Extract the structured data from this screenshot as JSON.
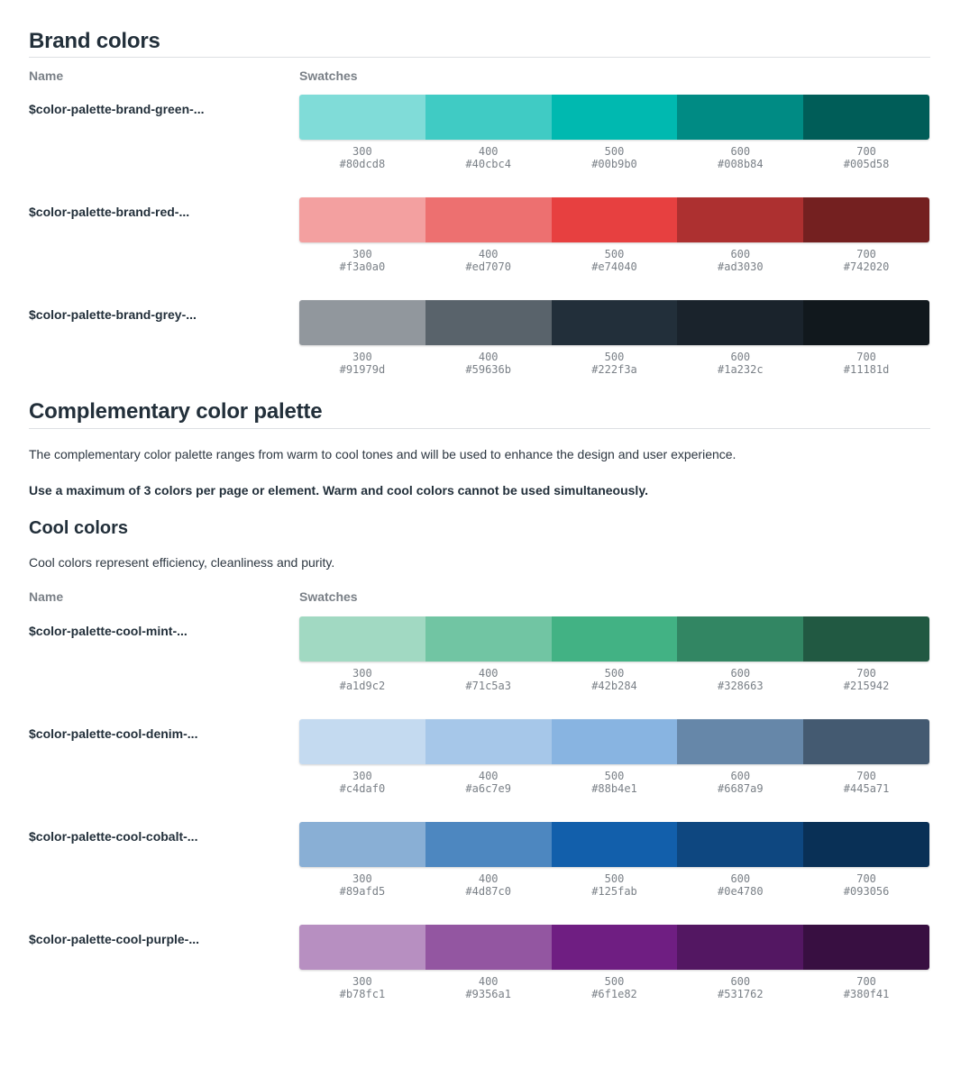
{
  "brand": {
    "title": "Brand colors",
    "col_name": "Name",
    "col_swatches": "Swatches",
    "rows": [
      {
        "token": "$color-palette-brand-green-...",
        "swatches": [
          {
            "step": "300",
            "hex": "#80dcd8"
          },
          {
            "step": "400",
            "hex": "#40cbc4"
          },
          {
            "step": "500",
            "hex": "#00b9b0"
          },
          {
            "step": "600",
            "hex": "#008b84"
          },
          {
            "step": "700",
            "hex": "#005d58"
          }
        ]
      },
      {
        "token": "$color-palette-brand-red-...",
        "swatches": [
          {
            "step": "300",
            "hex": "#f3a0a0"
          },
          {
            "step": "400",
            "hex": "#ed7070"
          },
          {
            "step": "500",
            "hex": "#e74040"
          },
          {
            "step": "600",
            "hex": "#ad3030"
          },
          {
            "step": "700",
            "hex": "#742020"
          }
        ]
      },
      {
        "token": "$color-palette-brand-grey-...",
        "swatches": [
          {
            "step": "300",
            "hex": "#91979d"
          },
          {
            "step": "400",
            "hex": "#59636b"
          },
          {
            "step": "500",
            "hex": "#222f3a"
          },
          {
            "step": "600",
            "hex": "#1a232c"
          },
          {
            "step": "700",
            "hex": "#11181d"
          }
        ]
      }
    ]
  },
  "complementary": {
    "title": "Complementary color palette",
    "intro": "The complementary color palette ranges from warm to cool tones and will be used to enhance the design and user experience.",
    "rule_note": "Use a maximum of 3 colors per page or element. Warm and cool colors cannot be used simultaneously."
  },
  "cool": {
    "title": "Cool colors",
    "description": "Cool colors represent efficiency, cleanliness and purity.",
    "col_name": "Name",
    "col_swatches": "Swatches",
    "rows": [
      {
        "token": "$color-palette-cool-mint-...",
        "swatches": [
          {
            "step": "300",
            "hex": "#a1d9c2"
          },
          {
            "step": "400",
            "hex": "#71c5a3"
          },
          {
            "step": "500",
            "hex": "#42b284"
          },
          {
            "step": "600",
            "hex": "#328663"
          },
          {
            "step": "700",
            "hex": "#215942"
          }
        ]
      },
      {
        "token": "$color-palette-cool-denim-...",
        "swatches": [
          {
            "step": "300",
            "hex": "#c4daf0"
          },
          {
            "step": "400",
            "hex": "#a6c7e9"
          },
          {
            "step": "500",
            "hex": "#88b4e1"
          },
          {
            "step": "600",
            "hex": "#6687a9"
          },
          {
            "step": "700",
            "hex": "#445a71"
          }
        ]
      },
      {
        "token": "$color-palette-cool-cobalt-...",
        "swatches": [
          {
            "step": "300",
            "hex": "#89afd5"
          },
          {
            "step": "400",
            "hex": "#4d87c0"
          },
          {
            "step": "500",
            "hex": "#125fab"
          },
          {
            "step": "600",
            "hex": "#0e4780"
          },
          {
            "step": "700",
            "hex": "#093056"
          }
        ]
      },
      {
        "token": "$color-palette-cool-purple-...",
        "swatches": [
          {
            "step": "300",
            "hex": "#b78fc1"
          },
          {
            "step": "400",
            "hex": "#9356a1"
          },
          {
            "step": "500",
            "hex": "#6f1e82"
          },
          {
            "step": "600",
            "hex": "#531762"
          },
          {
            "step": "700",
            "hex": "#380f41"
          }
        ]
      }
    ]
  }
}
